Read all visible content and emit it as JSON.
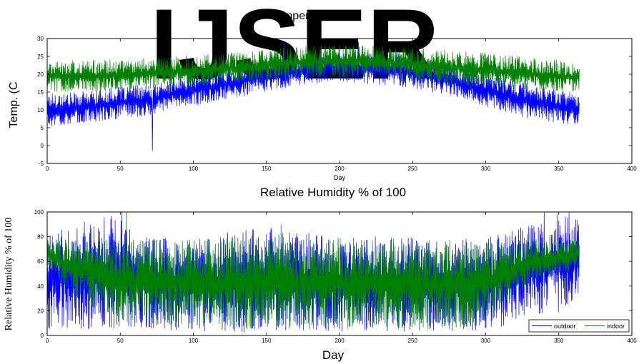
{
  "chart_data": [
    {
      "type": "line",
      "title": "Temperatures",
      "xlabel": "Day",
      "ylabel": "Temp. (C",
      "xlim": [
        0,
        400
      ],
      "ylim": [
        -5,
        30
      ],
      "xticks": [
        "0",
        "50",
        "100",
        "150",
        "200",
        "250",
        "300",
        "350",
        "400"
      ],
      "yticks": [
        "-5",
        "0",
        "5",
        "10",
        "15",
        "20",
        "25",
        "30"
      ],
      "grid": false,
      "series": [
        {
          "color": "#0000ff",
          "envelope": {
            "x": [
              0,
              20,
              40,
              60,
              70,
              80,
              100,
              125,
              150,
              175,
              200,
              225,
              250,
              275,
              300,
              325,
              350,
              364
            ],
            "low": [
              5,
              6,
              7,
              8,
              8,
              10,
              11,
              13,
              15,
              17,
              18,
              17,
              16,
              14,
              11,
              8,
              6,
              6
            ],
            "high": [
              15,
              15,
              16,
              17,
              17,
              18,
              20,
              22,
              24,
              25,
              26,
              26,
              25,
              23,
              20,
              18,
              16,
              15
            ]
          },
          "spikes": [
            {
              "x": 72,
              "y": -1.5
            },
            {
              "x": 163,
              "y": 29
            },
            {
              "x": 213,
              "y": 29
            }
          ]
        },
        {
          "color": "#007f00",
          "envelope": {
            "x": [
              0,
              20,
              40,
              60,
              80,
              100,
              125,
              150,
              175,
              200,
              225,
              250,
              275,
              300,
              325,
              350,
              364
            ],
            "low": [
              15,
              15,
              15,
              15.5,
              16,
              16.5,
              17,
              18,
              19,
              19,
              19,
              18,
              17,
              16,
              15.5,
              15,
              15
            ],
            "high": [
              24,
              24,
              24,
              24.5,
              25,
              25.5,
              26,
              27,
              28,
              28.5,
              28,
              27.5,
              27,
              26,
              25,
              24,
              23
            ]
          },
          "spikes": []
        }
      ]
    },
    {
      "type": "line",
      "title": "Relative Humidity % of 100",
      "xlabel": "Day",
      "ylabel": "Relative Humidity % of 100",
      "xlim": [
        0,
        400
      ],
      "ylim": [
        0,
        100
      ],
      "xticks": [
        "0",
        "50",
        "100",
        "150",
        "200",
        "250",
        "300",
        "350",
        "400"
      ],
      "yticks": [
        "0",
        "20",
        "40",
        "60",
        "80",
        "100"
      ],
      "grid": false,
      "legend": "bottom-right",
      "series": [
        {
          "name": "outdoor",
          "color": "#0000ff",
          "envelope": {
            "x": [
              0,
              20,
              50,
              70,
              100,
              130,
              160,
              200,
              240,
              270,
              300,
              330,
              350,
              364
            ],
            "low": [
              5,
              5,
              3,
              5,
              3,
              2,
              2,
              3,
              3,
              2,
              3,
              15,
              18,
              25
            ],
            "high": [
              88,
              92,
              100,
              80,
              78,
              85,
              88,
              78,
              82,
              78,
              80,
              90,
              100,
              95
            ]
          },
          "spikes": [
            {
              "x": 51,
              "y": 100
            },
            {
              "x": 340,
              "y": 100
            },
            {
              "x": 357,
              "y": 100
            }
          ]
        },
        {
          "name": "indoor",
          "color": "#007f00",
          "envelope": {
            "x": [
              0,
              20,
              50,
              70,
              100,
              130,
              160,
              200,
              240,
              270,
              300,
              330,
              364
            ],
            "low": [
              55,
              30,
              10,
              8,
              5,
              5,
              5,
              5,
              5,
              5,
              8,
              40,
              55
            ],
            "high": [
              78,
              78,
              78,
              78,
              78,
              80,
              82,
              80,
              80,
              78,
              78,
              78,
              78
            ]
          },
          "spikes": [
            {
              "x": 54,
              "y": 100
            },
            {
              "x": 160,
              "y": 90
            }
          ]
        }
      ]
    }
  ]
}
